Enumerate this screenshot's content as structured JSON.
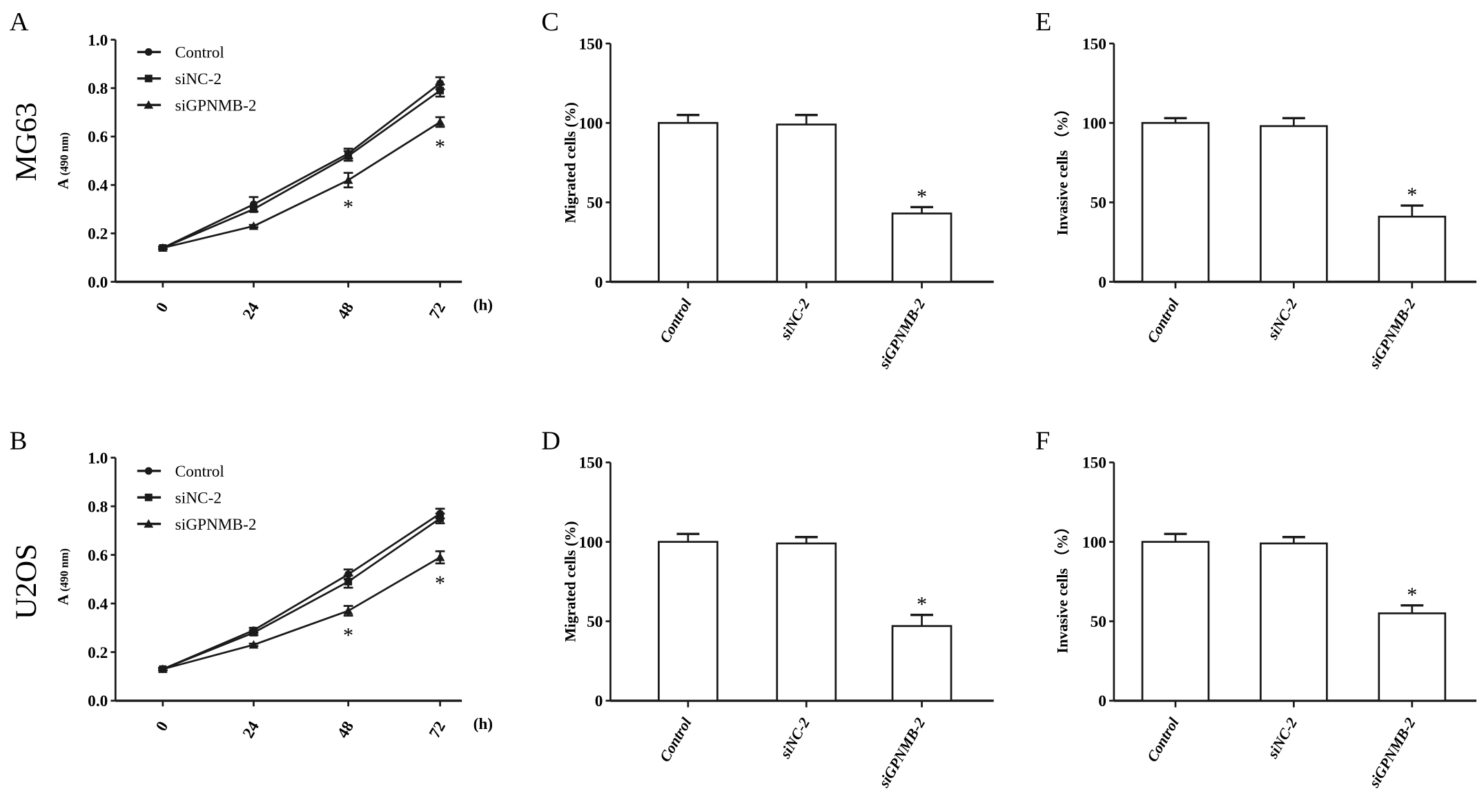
{
  "chart_data": [
    {
      "id": "A",
      "panel_label": "A",
      "row_label": "MG63",
      "type": "line",
      "xlabel": "(h)",
      "ylabel_main": "A",
      "ylabel_sub": "(490 nm)",
      "x": [
        0,
        24,
        48,
        72
      ],
      "xticks": [
        "0",
        "24",
        "48",
        "72"
      ],
      "ylim": [
        0,
        1.0
      ],
      "yticks": [
        "0.0",
        "0.2",
        "0.4",
        "0.6",
        "0.8",
        "1.0"
      ],
      "legend": "top-left",
      "grid": false,
      "series": [
        {
          "name": "Control",
          "marker": "circle",
          "values": [
            0.14,
            0.32,
            0.53,
            0.82
          ],
          "errors": [
            0.005,
            0.03,
            0.02,
            0.025
          ]
        },
        {
          "name": "siNC-2",
          "marker": "square",
          "values": [
            0.14,
            0.3,
            0.52,
            0.79
          ],
          "errors": [
            0.005,
            0.01,
            0.02,
            0.025
          ]
        },
        {
          "name": "siGPNMB-2",
          "marker": "triangle",
          "values": [
            0.14,
            0.23,
            0.42,
            0.66
          ],
          "errors": [
            0.005,
            0.005,
            0.03,
            0.02
          ]
        }
      ],
      "annotations": [
        {
          "x": 48,
          "text": "*"
        },
        {
          "x": 72,
          "text": "*"
        }
      ]
    },
    {
      "id": "B",
      "panel_label": "B",
      "row_label": "U2OS",
      "type": "line",
      "xlabel": "(h)",
      "ylabel_main": "A",
      "ylabel_sub": "(490 nm)",
      "x": [
        0,
        24,
        48,
        72
      ],
      "xticks": [
        "0",
        "24",
        "48",
        "72"
      ],
      "ylim": [
        0,
        1.0
      ],
      "yticks": [
        "0.0",
        "0.2",
        "0.4",
        "0.6",
        "0.8",
        "1.0"
      ],
      "legend": "top-left",
      "grid": false,
      "series": [
        {
          "name": "Control",
          "marker": "circle",
          "values": [
            0.13,
            0.29,
            0.52,
            0.77
          ],
          "errors": [
            0.005,
            0.01,
            0.02,
            0.02
          ]
        },
        {
          "name": "siNC-2",
          "marker": "square",
          "values": [
            0.13,
            0.28,
            0.49,
            0.75
          ],
          "errors": [
            0.005,
            0.01,
            0.025,
            0.02
          ]
        },
        {
          "name": "siGPNMB-2",
          "marker": "triangle",
          "values": [
            0.13,
            0.23,
            0.37,
            0.59
          ],
          "errors": [
            0.005,
            0.005,
            0.02,
            0.025
          ]
        }
      ],
      "annotations": [
        {
          "x": 48,
          "text": "*"
        },
        {
          "x": 72,
          "text": "*"
        }
      ]
    },
    {
      "id": "C",
      "panel_label": "C",
      "type": "bar",
      "ylabel": "Migrated cells (%)",
      "categories": [
        "Control",
        "siNC-2",
        "siGPNMB-2"
      ],
      "values": [
        100,
        99,
        43
      ],
      "errors": [
        5,
        6,
        4
      ],
      "ylim": [
        0,
        150
      ],
      "yticks": [
        "0",
        "50",
        "100",
        "150"
      ],
      "grid": false,
      "annotations": [
        {
          "category": "siGPNMB-2",
          "text": "*"
        }
      ]
    },
    {
      "id": "D",
      "panel_label": "D",
      "type": "bar",
      "ylabel": "Migrated cells (%)",
      "categories": [
        "Control",
        "siNC-2",
        "siGPNMB-2"
      ],
      "values": [
        100,
        99,
        47
      ],
      "errors": [
        5,
        4,
        7
      ],
      "ylim": [
        0,
        150
      ],
      "yticks": [
        "0",
        "50",
        "100",
        "150"
      ],
      "grid": false,
      "annotations": [
        {
          "category": "siGPNMB-2",
          "text": "*"
        }
      ]
    },
    {
      "id": "E",
      "panel_label": "E",
      "type": "bar",
      "ylabel": "Invasive cells （%）",
      "categories": [
        "Control",
        "siNC-2",
        "siGPNMB-2"
      ],
      "values": [
        100,
        98,
        41
      ],
      "errors": [
        3,
        5,
        7
      ],
      "ylim": [
        0,
        150
      ],
      "yticks": [
        "0",
        "50",
        "100",
        "150"
      ],
      "grid": false,
      "annotations": [
        {
          "category": "siGPNMB-2",
          "text": "*"
        }
      ]
    },
    {
      "id": "F",
      "panel_label": "F",
      "type": "bar",
      "ylabel": "Invasive cells （%）",
      "categories": [
        "Control",
        "siNC-2",
        "siGPNMB-2"
      ],
      "values": [
        100,
        99,
        55
      ],
      "errors": [
        5,
        4,
        5
      ],
      "ylim": [
        0,
        150
      ],
      "yticks": [
        "0",
        "50",
        "100",
        "150"
      ],
      "grid": false,
      "annotations": [
        {
          "category": "siGPNMB-2",
          "text": "*"
        }
      ]
    }
  ],
  "colors": {
    "ink": "#1a1a1a",
    "bar_fill": "#ffffff",
    "background": "#ffffff"
  }
}
